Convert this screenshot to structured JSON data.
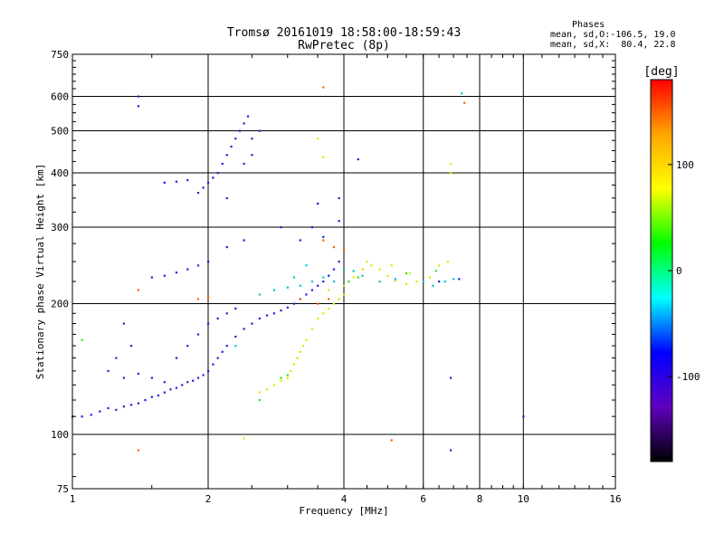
{
  "title": {
    "line1": "Tromsø 20161019 18:58:00-18:59:43",
    "line2": "RwPretec (8p)"
  },
  "phase_info": {
    "heading": "Phases",
    "line1": "mean, sd,O:-106.5, 19.0",
    "line2": "mean, sd,X:  80.4, 22.8"
  },
  "colorbar": {
    "unit": "[deg]",
    "ticks": [
      "100",
      "0",
      "-100"
    ],
    "colors": [
      "#ff0000",
      "#ffa500",
      "#ffff00",
      "#00ff00",
      "#00ffff",
      "#0000ff",
      "#6000c0",
      "#000000"
    ]
  },
  "chart_data": {
    "type": "scatter",
    "title": "Tromsø 20161019 18:58:00-18:59:43",
    "subtitle": "RwPretec (8p)",
    "xlabel": "Frequency [MHz]",
    "ylabel": "Stationary phase Virtual Height [km]",
    "xscale": "log",
    "yscale": "log",
    "xlim": [
      1,
      16
    ],
    "ylim": [
      75,
      750
    ],
    "xticks": [
      "1",
      "2",
      "4",
      "6",
      "8",
      "10",
      "16"
    ],
    "yticks": [
      "75",
      "100",
      "200",
      "300",
      "400",
      "500",
      "600",
      "750"
    ],
    "color_by": "phase [deg]",
    "grid": true,
    "series": [
      {
        "color": "#2020e0",
        "points": [
          [
            1.0,
            110
          ],
          [
            1.05,
            110
          ],
          [
            1.1,
            111
          ],
          [
            1.15,
            113
          ],
          [
            1.2,
            115
          ],
          [
            1.25,
            114
          ],
          [
            1.3,
            116
          ],
          [
            1.35,
            117
          ],
          [
            1.4,
            118
          ],
          [
            1.45,
            120
          ],
          [
            1.5,
            122
          ],
          [
            1.55,
            123
          ],
          [
            1.6,
            125
          ],
          [
            1.65,
            127
          ],
          [
            1.7,
            128
          ],
          [
            1.75,
            130
          ],
          [
            1.8,
            132
          ],
          [
            1.85,
            133
          ],
          [
            1.9,
            135
          ],
          [
            1.95,
            137
          ],
          [
            2.0,
            140
          ],
          [
            2.05,
            145
          ],
          [
            2.1,
            150
          ],
          [
            2.15,
            155
          ],
          [
            2.2,
            160
          ],
          [
            2.3,
            168
          ],
          [
            2.4,
            175
          ],
          [
            2.5,
            180
          ],
          [
            2.6,
            185
          ],
          [
            2.7,
            188
          ],
          [
            2.8,
            190
          ],
          [
            2.9,
            193
          ],
          [
            3.0,
            196
          ],
          [
            3.1,
            200
          ],
          [
            3.2,
            205
          ],
          [
            3.3,
            210
          ],
          [
            3.4,
            215
          ],
          [
            3.5,
            220
          ],
          [
            3.6,
            225
          ],
          [
            3.7,
            232
          ],
          [
            3.8,
            240
          ],
          [
            3.9,
            250
          ],
          [
            1.2,
            140
          ],
          [
            1.3,
            135
          ],
          [
            1.4,
            138
          ],
          [
            1.5,
            135
          ],
          [
            1.6,
            132
          ],
          [
            1.7,
            150
          ],
          [
            1.8,
            160
          ],
          [
            1.9,
            170
          ],
          [
            2.0,
            180
          ],
          [
            2.1,
            185
          ],
          [
            2.2,
            190
          ],
          [
            2.3,
            195
          ],
          [
            1.5,
            230
          ],
          [
            1.6,
            232
          ],
          [
            1.7,
            236
          ],
          [
            1.8,
            240
          ],
          [
            1.9,
            245
          ],
          [
            2.0,
            250
          ],
          [
            2.2,
            270
          ],
          [
            2.4,
            280
          ],
          [
            1.6,
            380
          ],
          [
            1.7,
            382
          ],
          [
            1.8,
            385
          ],
          [
            1.9,
            360
          ],
          [
            1.95,
            370
          ],
          [
            2.0,
            380
          ],
          [
            2.05,
            390
          ],
          [
            2.1,
            400
          ],
          [
            2.15,
            420
          ],
          [
            2.2,
            440
          ],
          [
            2.25,
            460
          ],
          [
            2.3,
            480
          ],
          [
            2.35,
            500
          ],
          [
            2.4,
            520
          ],
          [
            2.45,
            540
          ],
          [
            2.2,
            350
          ],
          [
            2.4,
            420
          ],
          [
            2.5,
            440
          ],
          [
            2.5,
            480
          ],
          [
            2.6,
            500
          ],
          [
            3.5,
            340
          ],
          [
            3.9,
            310
          ],
          [
            3.9,
            350
          ],
          [
            4.3,
            430
          ],
          [
            1.4,
            600
          ],
          [
            1.4,
            570
          ],
          [
            2.9,
            300
          ],
          [
            3.2,
            280
          ],
          [
            3.4,
            300
          ],
          [
            3.6,
            285
          ],
          [
            6.5,
            225
          ],
          [
            7.2,
            228
          ],
          [
            6.9,
            135
          ],
          [
            6.9,
            92
          ],
          [
            10.0,
            110
          ],
          [
            1.3,
            180
          ],
          [
            1.25,
            150
          ],
          [
            1.35,
            160
          ]
        ]
      },
      {
        "color": "#d0f000",
        "points": [
          [
            2.6,
            125
          ],
          [
            2.7,
            127
          ],
          [
            2.8,
            130
          ],
          [
            2.9,
            133
          ],
          [
            3.0,
            135
          ],
          [
            3.05,
            140
          ],
          [
            3.1,
            145
          ],
          [
            3.15,
            150
          ],
          [
            3.2,
            155
          ],
          [
            3.25,
            160
          ],
          [
            3.3,
            165
          ],
          [
            3.4,
            175
          ],
          [
            3.5,
            185
          ],
          [
            3.6,
            190
          ],
          [
            3.7,
            195
          ],
          [
            3.8,
            200
          ],
          [
            3.9,
            205
          ],
          [
            4.0,
            210
          ],
          [
            4.2,
            230
          ],
          [
            4.4,
            240
          ],
          [
            4.6,
            245
          ],
          [
            4.8,
            240
          ],
          [
            5.0,
            232
          ],
          [
            5.2,
            226
          ],
          [
            5.5,
            222
          ],
          [
            5.8,
            225
          ],
          [
            6.2,
            230
          ],
          [
            6.5,
            245
          ],
          [
            6.8,
            250
          ],
          [
            3.7,
            215
          ],
          [
            4.0,
            220
          ],
          [
            4.5,
            250
          ],
          [
            5.1,
            245
          ],
          [
            5.6,
            235
          ],
          [
            6.9,
            400
          ],
          [
            6.9,
            420
          ],
          [
            3.5,
            480
          ],
          [
            3.6,
            435
          ],
          [
            2.4,
            98
          ]
        ]
      },
      {
        "color": "#00c8c8",
        "points": [
          [
            2.6,
            210
          ],
          [
            2.8,
            215
          ],
          [
            3.0,
            218
          ],
          [
            3.2,
            220
          ],
          [
            3.4,
            225
          ],
          [
            3.6,
            230
          ],
          [
            3.8,
            225
          ],
          [
            4.0,
            240
          ],
          [
            4.2,
            238
          ],
          [
            4.4,
            232
          ],
          [
            4.8,
            225
          ],
          [
            5.2,
            228
          ],
          [
            6.0,
            225
          ],
          [
            6.7,
            225
          ],
          [
            7.0,
            228
          ],
          [
            3.1,
            230
          ],
          [
            3.3,
            245
          ],
          [
            7.3,
            610
          ],
          [
            2.3,
            160
          ],
          [
            6.3,
            220
          ]
        ]
      },
      {
        "color": "#ff6000",
        "points": [
          [
            3.6,
            280
          ],
          [
            3.8,
            270
          ],
          [
            4.0,
            265
          ],
          [
            3.5,
            200
          ],
          [
            3.7,
            205
          ],
          [
            3.2,
            205
          ],
          [
            2.0,
            207
          ],
          [
            1.9,
            205
          ],
          [
            1.4,
            92
          ],
          [
            5.1,
            97
          ],
          [
            7.4,
            580
          ],
          [
            3.6,
            630
          ],
          [
            1.4,
            215
          ]
        ]
      },
      {
        "color": "#30e030",
        "points": [
          [
            4.1,
            225
          ],
          [
            4.3,
            230
          ],
          [
            5.5,
            235
          ],
          [
            6.4,
            238
          ],
          [
            2.9,
            135
          ],
          [
            3.0,
            137
          ],
          [
            2.6,
            120
          ],
          [
            1.05,
            165
          ]
        ]
      }
    ]
  }
}
